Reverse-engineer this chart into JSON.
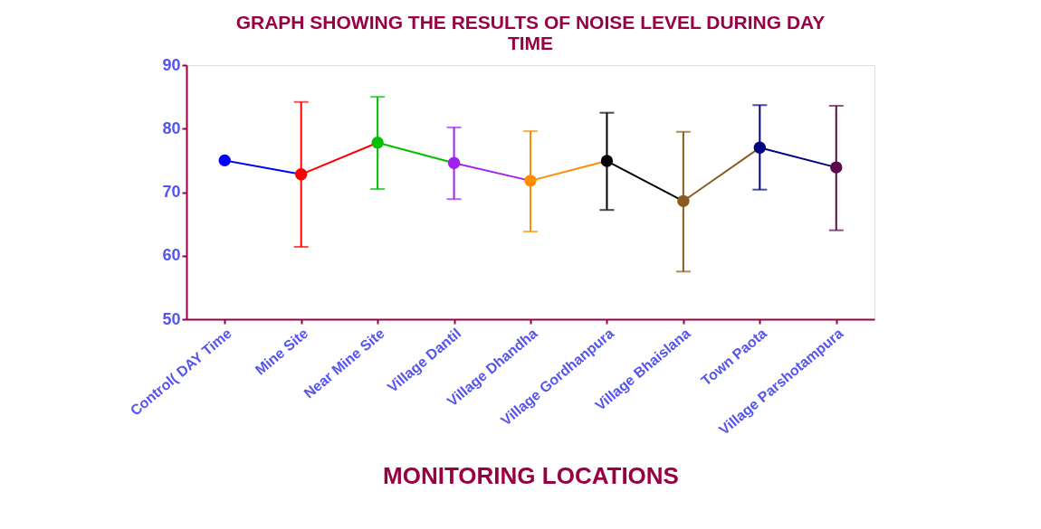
{
  "chart_data": {
    "type": "line",
    "title": [
      "GRAPH SHOWING THE RESULTS OF NOISE LEVEL DURING DAY",
      "TIME"
    ],
    "xlabel": "MONITORING LOCATIONS",
    "categories": [
      "Control( DAY Time",
      "Mine Site",
      "Near Mine Site",
      "Village Dantil",
      "Village Dhandha",
      "Village Gordhanpura",
      "Village Bhaislana",
      "Town Paota",
      "Village Parshotampura"
    ],
    "values": [
      75.0,
      72.8,
      77.8,
      74.6,
      71.8,
      74.9,
      68.6,
      77.0,
      73.9
    ],
    "colors": [
      "#0000ff",
      "#ff0000",
      "#00c000",
      "#a020f0",
      "#ff8c00",
      "#000000",
      "#8b5a1e",
      "#000080",
      "#5c0a4a"
    ],
    "errors": [
      null,
      [
        61.4,
        84.2
      ],
      [
        70.5,
        85.0
      ],
      [
        68.9,
        80.2
      ],
      [
        63.8,
        79.6
      ],
      [
        67.2,
        82.5
      ],
      [
        57.5,
        79.5
      ],
      [
        70.4,
        83.7
      ],
      [
        64.0,
        83.6
      ]
    ],
    "ylim": [
      50,
      90
    ],
    "yticks": [
      50,
      60,
      70,
      80,
      90
    ],
    "grid": false,
    "marker": "circle",
    "line_style": "solid"
  }
}
